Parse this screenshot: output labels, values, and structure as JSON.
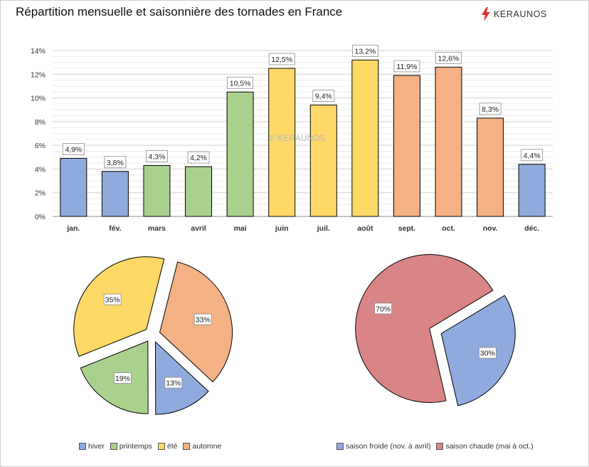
{
  "header": {
    "title": "Répartition mensuelle et saisonnière des tornades en France",
    "logo_text": "KERAUNOS",
    "logo_icon": "lightning-bolt-icon",
    "logo_color": "#e0302b"
  },
  "watermark": "© KERAUNOS",
  "chart_data": [
    {
      "type": "bar",
      "categories": [
        "jan.",
        "fév.",
        "mars",
        "avril",
        "mai",
        "juin",
        "juil.",
        "août",
        "sept.",
        "oct.",
        "nov.",
        "déc."
      ],
      "values": [
        4.9,
        3.8,
        4.3,
        4.2,
        10.5,
        12.5,
        9.4,
        13.2,
        11.9,
        12.6,
        8.3,
        4.4
      ],
      "value_labels": [
        "4,9%",
        "3,8%",
        "4,3%",
        "4,2%",
        "10,5%",
        "12,5%",
        "9,4%",
        "13,2%",
        "11,9%",
        "12,6%",
        "8,3%",
        "4,4%"
      ],
      "colors": [
        "#8faadc",
        "#8faadc",
        "#a9d18e",
        "#a9d18e",
        "#a9d18e",
        "#ffd966",
        "#ffd966",
        "#ffd966",
        "#f4b183",
        "#f4b183",
        "#f4b183",
        "#8faadc"
      ],
      "ylim": [
        0,
        14
      ],
      "yticks": [
        "0%",
        "2%",
        "4%",
        "6%",
        "8%",
        "10%",
        "12%",
        "14%"
      ],
      "grid": true,
      "xlabel": "",
      "ylabel": ""
    },
    {
      "type": "pie",
      "labels": [
        "hiver",
        "printemps",
        "été",
        "automne"
      ],
      "values": [
        13,
        19,
        35,
        33
      ],
      "value_labels": [
        "13%",
        "19%",
        "35%",
        "33%"
      ],
      "colors": [
        "#8faadc",
        "#a9d18e",
        "#ffd966",
        "#f4b183"
      ],
      "exploded": true,
      "legend": "bottom"
    },
    {
      "type": "pie",
      "labels": [
        "saison froide (nov. à avril)",
        "saison chaude (mai à oct.)"
      ],
      "values": [
        30,
        70
      ],
      "value_labels": [
        "30%",
        "70%"
      ],
      "colors": [
        "#8faadc",
        "#d98585"
      ],
      "exploded": true,
      "legend": "bottom"
    }
  ]
}
